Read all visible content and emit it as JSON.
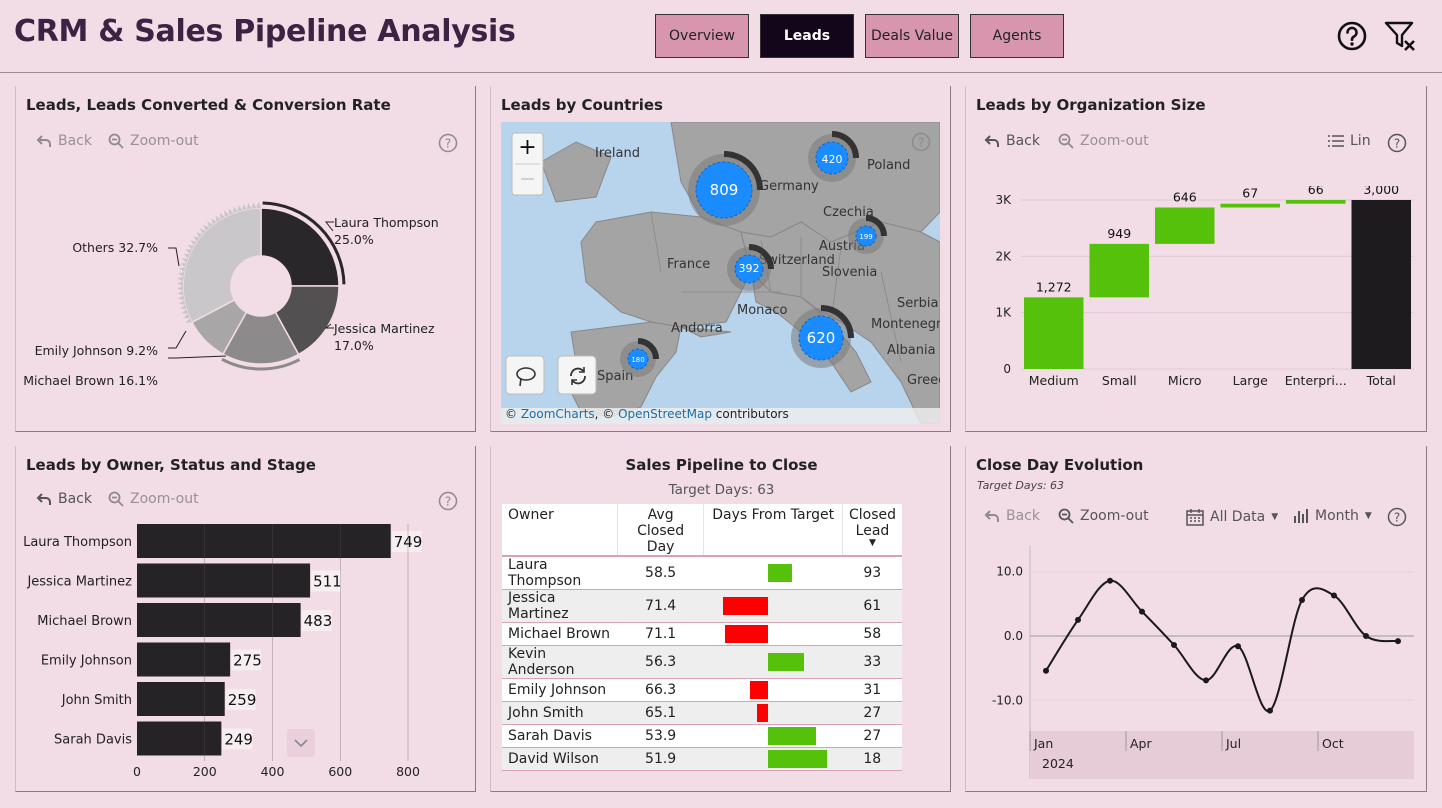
{
  "header": {
    "title": "CRM & Sales Pipeline Analysis",
    "tabs": [
      {
        "label": "Overview",
        "active": false
      },
      {
        "label": "Leads",
        "active": true
      },
      {
        "label": "Deals Value",
        "active": false
      },
      {
        "label": "Agents",
        "active": false
      }
    ],
    "help_icon": "help-circle-icon",
    "clear_filter_icon": "clear-filter-icon"
  },
  "colors": {
    "background": "#f2dce5",
    "dark_bar": "#262326",
    "green": "#55c10a",
    "red": "#fe0000",
    "active_tab": "#14061a",
    "tab": "#d896ae"
  },
  "toolbar": {
    "back": "Back",
    "zoom_out": "Zoom-out",
    "lin": "Lin",
    "all_data": "All Data",
    "month": "Month"
  },
  "donut": {
    "title": "Leads, Leads Converted & Conversion Rate",
    "chart_data": {
      "type": "pie",
      "slices": [
        {
          "label": "Laura Thompson",
          "pct_text": "25.0%",
          "value": 25.0
        },
        {
          "label": "Jessica Martinez",
          "pct_text": "17.0%",
          "value": 17.0
        },
        {
          "label": "Michael Brown",
          "pct_text": "16.1%",
          "value": 16.1
        },
        {
          "label": "Emily Johnson",
          "pct_text": "9.2%",
          "value": 9.2
        },
        {
          "label": "Others",
          "pct_text": "32.7%",
          "value": 32.7
        }
      ],
      "labels": {
        "laura": "Laura Thompson",
        "laura_pct": "25.0%",
        "jessica": "Jessica Martinez",
        "jessica_pct": "17.0%",
        "michael": "Michael Brown 16.1%",
        "emily": "Emily Johnson 9.2%",
        "others": "Others 32.7%"
      }
    }
  },
  "map": {
    "title": "Leads by Countries",
    "zoom_in": "+",
    "zoom_out": "—",
    "countries": [
      "Ireland",
      "Germany",
      "Poland",
      "Czechia",
      "France",
      "Austria",
      "Switzerland",
      "Slovenia",
      "Monaco",
      "Andorra",
      "Spain",
      "Montenegro",
      "Albania",
      "Serbia",
      "Greece"
    ],
    "bubbles": [
      {
        "country": "Germany",
        "value": 809
      },
      {
        "country": "Poland",
        "value": 420
      },
      {
        "country": "Switzerland",
        "value": 392
      },
      {
        "country": "Austria",
        "value": 199
      },
      {
        "country": "Italy",
        "value": 620
      },
      {
        "country": "Spain",
        "value": 180
      }
    ],
    "attribution": {
      "prefix": "© ",
      "zc": "ZoomCharts",
      "sep": ", © ",
      "osm": "OpenStreetMap",
      "suffix": " contributors"
    }
  },
  "waterfall": {
    "title": "Leads by Organization Size",
    "chart_data": {
      "type": "bar",
      "categories": [
        "Medium",
        "Small",
        "Micro",
        "Large",
        "Enterpri...",
        "Total"
      ],
      "values": [
        1272,
        949,
        646,
        67,
        66,
        3000
      ],
      "value_labels": [
        "1,272",
        "949",
        "646",
        "67",
        "66",
        "3,000"
      ],
      "y_ticks": [
        "0",
        "1K",
        "2K",
        "3K"
      ],
      "ylim": [
        0,
        3000
      ]
    }
  },
  "owners": {
    "title": "Leads by Owner, Status and Stage",
    "chart_data": {
      "type": "bar",
      "categories": [
        "Laura Thompson",
        "Jessica Martinez",
        "Michael Brown",
        "Emily Johnson",
        "John Smith",
        "Sarah Davis"
      ],
      "values": [
        749,
        511,
        483,
        275,
        259,
        249
      ],
      "x_ticks": [
        "0",
        "200",
        "400",
        "600",
        "800"
      ],
      "xlim": [
        0,
        800
      ]
    },
    "scroll_down_icon": "chevron-down-icon"
  },
  "pipeline": {
    "title": "Sales Pipeline to Close",
    "subtitle": "Target Days: 63",
    "columns": {
      "owner": "Owner",
      "avg_line1": "Avg Closed",
      "avg_line2": "Day",
      "days_from_target": "Days From Target",
      "closed_line1": "Closed",
      "closed_line2": "Lead"
    },
    "chart_data": {
      "type": "table",
      "rows": [
        {
          "owner": "Laura Thompson",
          "avg": "58.5",
          "delta": -4.5,
          "closed": "93"
        },
        {
          "owner": "Jessica Martinez",
          "avg": "71.4",
          "delta": 8.4,
          "closed": "61"
        },
        {
          "owner": "Michael Brown",
          "avg": "71.1",
          "delta": 8.1,
          "closed": "58"
        },
        {
          "owner": "Kevin Anderson",
          "avg": "56.3",
          "delta": -6.7,
          "closed": "33"
        },
        {
          "owner": "Emily Johnson",
          "avg": "66.3",
          "delta": 3.3,
          "closed": "31"
        },
        {
          "owner": "John Smith",
          "avg": "65.1",
          "delta": 2.1,
          "closed": "27"
        },
        {
          "owner": "Sarah Davis",
          "avg": "53.9",
          "delta": -9.1,
          "closed": "27"
        },
        {
          "owner": "David Wilson",
          "avg": "51.9",
          "delta": -11.1,
          "closed": "18"
        }
      ]
    }
  },
  "close_day": {
    "title": "Close Day Evolution",
    "subtitle": "Target Days: 63",
    "chart_data": {
      "type": "line",
      "x": [
        "2024-01",
        "2024-02",
        "2024-03",
        "2024-04",
        "2024-05",
        "2024-06",
        "2024-07",
        "2024-08",
        "2024-09",
        "2024-10",
        "2024-11",
        "2024-12"
      ],
      "y": [
        -5.4,
        2.5,
        8.6,
        3.8,
        -1.4,
        -6.9,
        -1.6,
        -11.6,
        5.6,
        6.3,
        0.0,
        -0.8
      ],
      "y_ticks": [
        "10.0",
        "0.0",
        "-10.0"
      ],
      "x_ticks": [
        "Jan",
        "Apr",
        "Jul",
        "Oct"
      ],
      "year": "2024",
      "ylim": [
        -14,
        14
      ]
    }
  }
}
